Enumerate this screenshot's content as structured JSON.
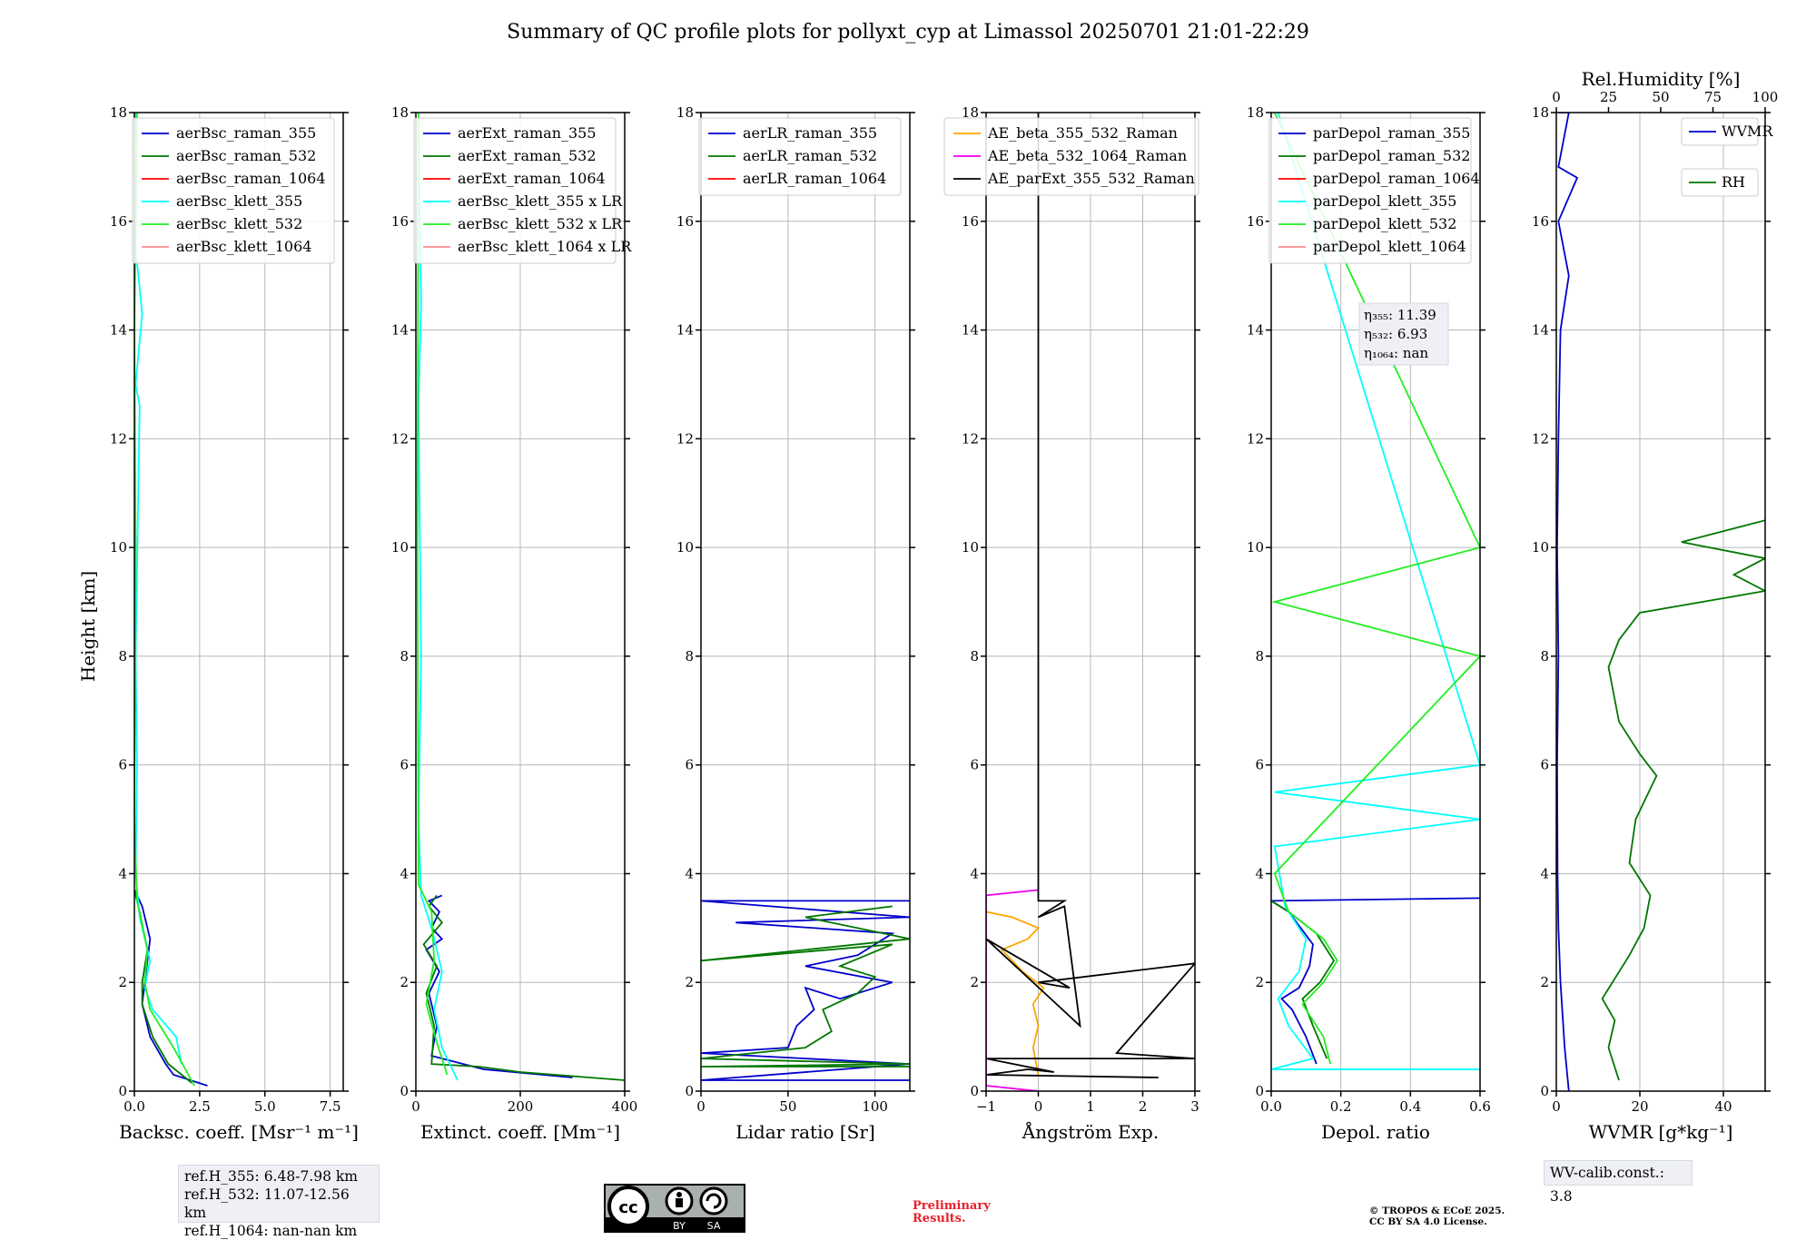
{
  "title": "Summary of QC profile plots for pollyxt_cyp at Limassol 20250701 21:01-22:29",
  "ylabel": "Height [km]",
  "ref_heights": [
    "ref.H_355: 6.48-7.98 km",
    "ref.H_532: 11.07-12.56 km",
    "ref.H_1064: nan-nan km"
  ],
  "wv_calib": "WV-calib.const.: 3.8",
  "preliminary": [
    "Preliminary",
    "Results."
  ],
  "copyright": [
    "© TROPOS & ECoE 2025.",
    "CC BY SA 4.0 License."
  ],
  "license_badge": [
    "BY",
    "SA"
  ],
  "colors": {
    "blue": "#0000cc",
    "green": "#007700",
    "red": "#ff0000",
    "cyan": "#00ffff",
    "lime": "#22ee22",
    "salmon": "#ff8c8c",
    "orange": "#ffa500",
    "magenta": "#ee00ee",
    "black": "#000000"
  },
  "chart_data": [
    {
      "type": "line",
      "xlabel": "Backsc. coeff. [Msr⁻¹ m⁻¹]",
      "xlim": [
        0,
        8
      ],
      "xticks": [
        0,
        2.5,
        5,
        7.5
      ],
      "xticklabels": [
        "0.0",
        "2.5",
        "5.0",
        "7.5"
      ],
      "ylim": [
        0,
        18
      ],
      "yticks": [
        0,
        2,
        4,
        6,
        8,
        10,
        12,
        14,
        16,
        18
      ],
      "grid": true,
      "legend": "upper right",
      "series": [
        {
          "name": "aerBsc_raman_355",
          "color": "blue",
          "x": [
            2.8,
            1.5,
            1.2,
            0.6,
            0.3,
            0.4,
            0.6,
            0.3,
            0.0
          ],
          "y": [
            0.1,
            0.3,
            0.5,
            1.0,
            1.6,
            2.0,
            2.8,
            3.4,
            3.7
          ]
        },
        {
          "name": "aerBsc_raman_532",
          "color": "green",
          "x": [
            2.2,
            1.3,
            0.7,
            0.3,
            0.3,
            0.5,
            0.2,
            0.0
          ],
          "y": [
            0.15,
            0.5,
            1.0,
            1.6,
            2.0,
            2.6,
            3.3,
            3.7
          ]
        },
        {
          "name": "aerBsc_raman_1064",
          "color": "red",
          "x": [],
          "y": []
        },
        {
          "name": "aerBsc_klett_355",
          "color": "cyan",
          "x": [
            1.8,
            1.6,
            0.7,
            0.4,
            0.6,
            0.2,
            0.05,
            0.1,
            0.05,
            0.2,
            0.05,
            0.3,
            0.05,
            0.1,
            0.05
          ],
          "y": [
            0.5,
            1.0,
            1.5,
            1.9,
            2.4,
            3.2,
            4.0,
            6.0,
            8.0,
            12.6,
            13.0,
            14.3,
            15.5,
            17.0,
            18.0
          ]
        },
        {
          "name": "aerBsc_klett_532",
          "color": "lime",
          "x": [
            2.3,
            1.5,
            0.6,
            0.4,
            0.5,
            0.1,
            0.0,
            0.05,
            0.0,
            0.1
          ],
          "y": [
            0.1,
            0.8,
            1.5,
            2.0,
            2.6,
            3.5,
            5.0,
            10.0,
            14.0,
            18.0
          ]
        },
        {
          "name": "aerBsc_klett_1064",
          "color": "salmon",
          "x": [],
          "y": []
        }
      ]
    },
    {
      "type": "line",
      "xlabel": "Extinct. coeff. [Mm⁻¹]",
      "xlim": [
        0,
        400
      ],
      "xticks": [
        0,
        200,
        400
      ],
      "xticklabels": [
        "0",
        "200",
        "400"
      ],
      "ylim": [
        0,
        18
      ],
      "yticks": [
        0,
        2,
        4,
        6,
        8,
        10,
        12,
        14,
        16,
        18
      ],
      "grid": true,
      "legend": "upper right",
      "series": [
        {
          "name": "aerExt_raman_355",
          "color": "blue",
          "x": [
            300,
            130,
            30,
            40,
            25,
            45,
            20,
            50,
            30,
            45,
            25,
            50
          ],
          "y": [
            0.25,
            0.4,
            0.65,
            1.2,
            1.8,
            2.2,
            2.6,
            2.8,
            3.0,
            3.3,
            3.5,
            3.6
          ]
        },
        {
          "name": "aerExt_raman_532",
          "color": "green",
          "x": [
            400,
            200,
            120,
            30,
            35,
            20,
            40,
            15,
            50,
            25,
            40
          ],
          "y": [
            0.2,
            0.35,
            0.45,
            0.5,
            1.2,
            1.8,
            2.3,
            2.7,
            3.1,
            3.4,
            3.6
          ]
        },
        {
          "name": "aerExt_raman_1064",
          "color": "red",
          "x": [],
          "y": []
        },
        {
          "name": "aerBsc_klett_355 x LR",
          "color": "cyan",
          "x": [
            80,
            50,
            35,
            50,
            30,
            10,
            5,
            10,
            5,
            10,
            5
          ],
          "y": [
            0.2,
            0.8,
            1.5,
            2.2,
            3.0,
            3.6,
            5.0,
            8.0,
            12.6,
            14.5,
            18.0
          ]
        },
        {
          "name": "aerBsc_klett_532 x LR",
          "color": "lime",
          "x": [
            60,
            40,
            20,
            35,
            30,
            5,
            3,
            5
          ],
          "y": [
            0.3,
            0.9,
            1.6,
            2.4,
            3.3,
            3.8,
            10.0,
            18.0
          ]
        },
        {
          "name": "aerBsc_klett_1064 x LR",
          "color": "salmon",
          "x": [],
          "y": []
        }
      ]
    },
    {
      "type": "line",
      "xlabel": "Lidar ratio [Sr]",
      "xlim": [
        0,
        120
      ],
      "xticks": [
        0,
        50,
        100
      ],
      "xticklabels": [
        "0",
        "50",
        "100"
      ],
      "ylim": [
        0,
        18
      ],
      "yticks": [
        0,
        2,
        4,
        6,
        8,
        10,
        12,
        14,
        16,
        18
      ],
      "grid": true,
      "legend": "upper right",
      "series": [
        {
          "name": "aerLR_raman_355",
          "color": "blue",
          "x": [
            120,
            0,
            120,
            0,
            50,
            55,
            65,
            60,
            80,
            110,
            60,
            90,
            110,
            20,
            120,
            0,
            120
          ],
          "y": [
            0.2,
            0.2,
            0.5,
            0.7,
            0.8,
            1.2,
            1.5,
            1.9,
            1.7,
            2.0,
            2.3,
            2.5,
            2.9,
            3.1,
            3.2,
            3.5,
            3.5
          ]
        },
        {
          "name": "aerLR_raman_532",
          "color": "green",
          "x": [
            120,
            0,
            120,
            0,
            60,
            75,
            70,
            90,
            100,
            80,
            110,
            0,
            120,
            60,
            110
          ],
          "y": [
            0.45,
            0.45,
            0.5,
            0.6,
            0.8,
            1.1,
            1.5,
            1.8,
            2.1,
            2.3,
            2.7,
            2.4,
            2.8,
            3.2,
            3.4
          ]
        },
        {
          "name": "aerLR_raman_1064",
          "color": "red",
          "x": [],
          "y": []
        }
      ]
    },
    {
      "type": "line",
      "xlabel": "Ångström Exp.",
      "xlim": [
        -1,
        3
      ],
      "xticks": [
        -1,
        0,
        1,
        2,
        3
      ],
      "xticklabels": [
        "−1",
        "0",
        "1",
        "2",
        "3"
      ],
      "ylim": [
        0,
        18
      ],
      "yticks": [
        0,
        2,
        4,
        6,
        8,
        10,
        12,
        14,
        16,
        18
      ],
      "grid": true,
      "legend": "upper right",
      "series": [
        {
          "name": "AE_beta_355_532_Raman",
          "color": "orange",
          "x": [
            0.0,
            -0.1,
            0.0,
            -0.1,
            0.1,
            -0.3,
            -0.7,
            -0.2,
            0.0,
            -0.5,
            -1.0
          ],
          "y": [
            0.3,
            0.8,
            1.2,
            1.6,
            1.9,
            2.2,
            2.6,
            2.8,
            3.0,
            3.2,
            3.3
          ]
        },
        {
          "name": "AE_beta_532_1064_Raman",
          "color": "magenta",
          "x": [
            0.0,
            -1.0,
            -1.0,
            0.0
          ],
          "y": [
            0.0,
            0.1,
            3.6,
            3.7
          ]
        },
        {
          "name": "AE_parExt_355_532_Raman",
          "color": "black",
          "x": [
            2.3,
            -1.0,
            -0.2,
            0.3,
            -1.0,
            3.0,
            1.5,
            3.0,
            0.0,
            0.6,
            -1.0,
            0.8,
            0.5,
            0.0,
            0.5,
            0.0,
            0.0
          ],
          "y": [
            0.25,
            0.3,
            0.4,
            0.35,
            0.6,
            0.6,
            0.7,
            2.35,
            2.0,
            1.9,
            2.8,
            1.2,
            3.4,
            3.2,
            3.5,
            3.5,
            18.0
          ]
        }
      ]
    },
    {
      "type": "line",
      "xlabel": "Depol. ratio",
      "xlim": [
        0,
        0.6
      ],
      "xticks": [
        0,
        0.2,
        0.4,
        0.6
      ],
      "xticklabels": [
        "0.0",
        "0.2",
        "0.4",
        "0.6"
      ],
      "ylim": [
        0,
        18
      ],
      "yticks": [
        0,
        2,
        4,
        6,
        8,
        10,
        12,
        14,
        16,
        18
      ],
      "grid": true,
      "legend": "upper right",
      "annotations": [
        "η₃₅₅: 11.39",
        "η₅₃₂: 6.93",
        "η₁₀₆₄: nan"
      ],
      "series": [
        {
          "name": "parDepol_raman_355",
          "color": "blue",
          "x": [
            0.13,
            0.1,
            0.06,
            0.03,
            0.08,
            0.11,
            0.12,
            0.05,
            0.0,
            0.6
          ],
          "y": [
            0.5,
            1.0,
            1.5,
            1.7,
            1.9,
            2.3,
            2.7,
            3.3,
            3.5,
            3.55
          ]
        },
        {
          "name": "parDepol_raman_532",
          "color": "green",
          "x": [
            0.16,
            0.12,
            0.09,
            0.14,
            0.18,
            0.13,
            0.05,
            0.0
          ],
          "y": [
            0.6,
            1.2,
            1.7,
            2.0,
            2.4,
            2.9,
            3.3,
            3.5
          ]
        },
        {
          "name": "parDepol_raman_1064",
          "color": "red",
          "x": [],
          "y": []
        },
        {
          "name": "parDepol_klett_355",
          "color": "cyan",
          "x": [
            0.6,
            0.0,
            0.12,
            0.05,
            0.02,
            0.08,
            0.1,
            0.04,
            0.01,
            0.6,
            0.01,
            0.6,
            0.02
          ],
          "y": [
            0.4,
            0.4,
            0.6,
            1.2,
            1.7,
            2.2,
            2.8,
            3.4,
            4.5,
            5.0,
            5.5,
            6.0,
            18.0
          ]
        },
        {
          "name": "parDepol_klett_532",
          "color": "lime",
          "x": [
            0.17,
            0.15,
            0.09,
            0.15,
            0.19,
            0.15,
            0.05,
            0.01,
            0.6,
            0.01,
            0.6,
            0.01
          ],
          "y": [
            0.5,
            1.0,
            1.6,
            2.0,
            2.4,
            2.8,
            3.3,
            4.0,
            8.0,
            9.0,
            10.0,
            18.0
          ]
        },
        {
          "name": "parDepol_klett_1064",
          "color": "salmon",
          "x": [],
          "y": []
        }
      ]
    },
    {
      "type": "line",
      "xlabel": "WVMR [g*kg⁻¹]",
      "x2label": "Rel.Humidity [%]",
      "xlim": [
        0,
        50
      ],
      "xticks": [
        0,
        20,
        40
      ],
      "xticklabels": [
        "0",
        "20",
        "40"
      ],
      "x2lim": [
        0,
        100
      ],
      "x2ticks": [
        0,
        25,
        50,
        75,
        100
      ],
      "x2ticklabels": [
        "0",
        "25",
        "50",
        "75",
        "100"
      ],
      "ylim": [
        0,
        18
      ],
      "yticks": [
        0,
        2,
        4,
        6,
        8,
        10,
        12,
        14,
        16,
        18
      ],
      "grid": true,
      "legend": "upper right",
      "series": [
        {
          "name": "WVMR",
          "color": "blue",
          "axis": "bottom",
          "x": [
            3,
            2,
            1,
            0.5,
            0.3,
            0.2,
            0.5,
            0.2,
            0.5,
            1,
            3,
            0.5,
            5,
            0.5,
            3,
            0.5
          ],
          "y": [
            0,
            0.8,
            2.0,
            3.0,
            4.0,
            6.0,
            8.0,
            10.0,
            12.0,
            14.0,
            15.0,
            16.0,
            16.8,
            17.0,
            18.0,
            18.0
          ]
        },
        {
          "name": "RH",
          "color": "green",
          "axis": "top",
          "x": [
            30,
            25,
            28,
            22,
            35,
            42,
            45,
            35,
            38,
            48,
            40,
            30,
            28,
            25,
            30,
            40,
            70,
            100,
            85,
            100,
            60,
            100
          ],
          "y": [
            0.2,
            0.8,
            1.3,
            1.7,
            2.5,
            3.0,
            3.6,
            4.2,
            5.0,
            5.8,
            6.2,
            6.8,
            7.2,
            7.8,
            8.3,
            8.8,
            9.0,
            9.2,
            9.5,
            9.8,
            10.1,
            10.5
          ]
        }
      ]
    }
  ]
}
